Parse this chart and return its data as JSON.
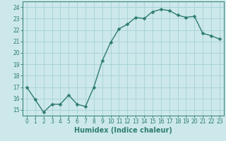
{
  "x": [
    0,
    1,
    2,
    3,
    4,
    5,
    6,
    7,
    8,
    9,
    10,
    11,
    12,
    13,
    14,
    15,
    16,
    17,
    18,
    19,
    20,
    21,
    22,
    23
  ],
  "y": [
    17.0,
    15.9,
    14.8,
    15.5,
    15.5,
    16.3,
    15.5,
    15.3,
    17.0,
    19.3,
    20.9,
    22.1,
    22.5,
    23.1,
    23.0,
    23.6,
    23.8,
    23.7,
    23.3,
    23.1,
    23.2,
    21.7,
    21.5,
    21.2
  ],
  "line_color": "#2e7d6e",
  "marker_color": "#2e7d6e",
  "bg_color": "#cce8ea",
  "grid_color": "#aad4d8",
  "xlabel": "Humidex (Indice chaleur)",
  "xlim": [
    -0.5,
    23.5
  ],
  "ylim": [
    14.5,
    24.5
  ],
  "yticks": [
    15,
    16,
    17,
    18,
    19,
    20,
    21,
    22,
    23,
    24
  ],
  "xticks": [
    0,
    1,
    2,
    3,
    4,
    5,
    6,
    7,
    8,
    9,
    10,
    11,
    12,
    13,
    14,
    15,
    16,
    17,
    18,
    19,
    20,
    21,
    22,
    23
  ],
  "tick_fontsize": 5.5,
  "label_fontsize": 7,
  "line_width": 1.0,
  "marker_size": 2.5
}
